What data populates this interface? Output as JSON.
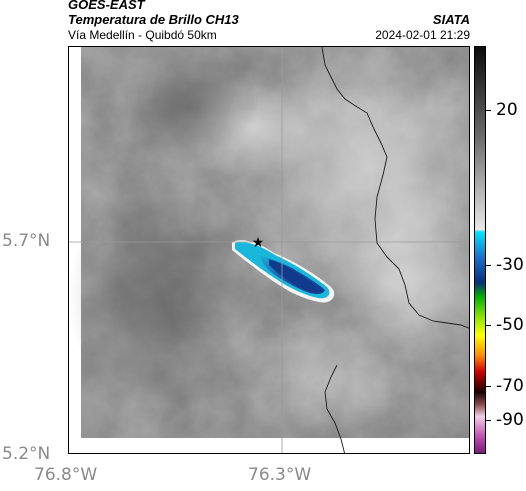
{
  "header": {
    "satellite": "GOES-EAST",
    "product": "Temperatura de Brillo CH13",
    "route": "Vía Medellín - Quibdó 50km",
    "source": "SIATA",
    "datetime": "2024-02-01 21:29"
  },
  "map": {
    "lat_labels": [
      "5.7°N",
      "5.2°N"
    ],
    "lon_labels": [
      "76.8°W",
      "76.3°W"
    ],
    "marker": "star",
    "colors": {
      "background_cloud": "#7d7d7d",
      "cold_cloud_core": "#1e4fa0",
      "cold_cloud_edge": "#19b7d9",
      "boundary": "#1a1a1a"
    }
  },
  "colorbar": {
    "ticks": [
      "20",
      "-30",
      "-50",
      "-70",
      "-90"
    ],
    "unit_scale": "brightness temperature"
  }
}
